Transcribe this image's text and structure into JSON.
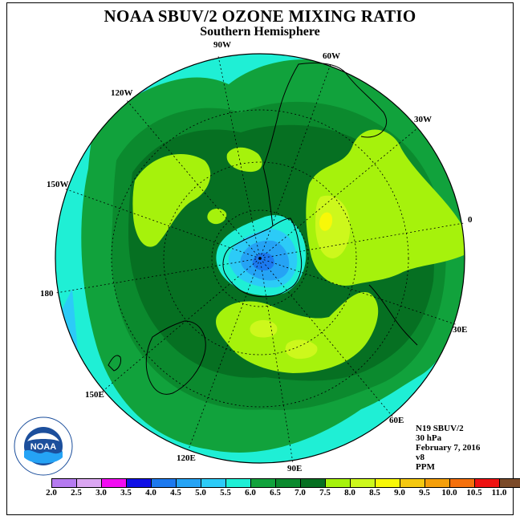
{
  "title": "NOAA SBUV/2 OZONE MIXING RATIO",
  "subtitle": "Southern Hemisphere",
  "longitude_labels": {
    "w90": "90W",
    "w60": "60W",
    "w30": "30W",
    "lon0": "0",
    "e30": "30E",
    "e60": "60E",
    "e90": "90E",
    "e120": "120E",
    "e150": "150E",
    "lon180": "180",
    "w150": "150W",
    "w120": "120W"
  },
  "info": {
    "satellite": "N19 SBUV/2",
    "level": "30 hPa",
    "date": "February 7, 2016",
    "version": "v8",
    "units": "PPM"
  },
  "logo_text": "NOAA",
  "colorbar": {
    "colors": [
      "#b57af0",
      "#dba6f2",
      "#f20cf2",
      "#1010e6",
      "#1c79ef",
      "#25a3f5",
      "#2ccbf7",
      "#1fefd5",
      "#11a23c",
      "#0b8a2e",
      "#067022",
      "#a6f20c",
      "#cdf81c",
      "#f8f808",
      "#f5c80f",
      "#f59f0a",
      "#f5700c",
      "#ee1212",
      "#7b4a28"
    ],
    "ticks": [
      "2.0",
      "2.5",
      "3.0",
      "3.5",
      "4.0",
      "4.5",
      "5.0",
      "5.5",
      "6.0",
      "6.5",
      "7.0",
      "7.5",
      "8.0",
      "8.5",
      "9.0",
      "9.5",
      "10.0",
      "10.5",
      "11.0"
    ]
  },
  "map_colors": {
    "c55_60": "#1fefd5",
    "c60_65": "#11a23c",
    "c65_70": "#0b8a2e",
    "c70_75": "#067022",
    "c75_80": "#a6f20c",
    "c80_85": "#cdf81c",
    "c85_90": "#f8f808",
    "c50_55": "#2ccbf7",
    "c45_50": "#25a3f5",
    "c40_45": "#1c79ef"
  }
}
